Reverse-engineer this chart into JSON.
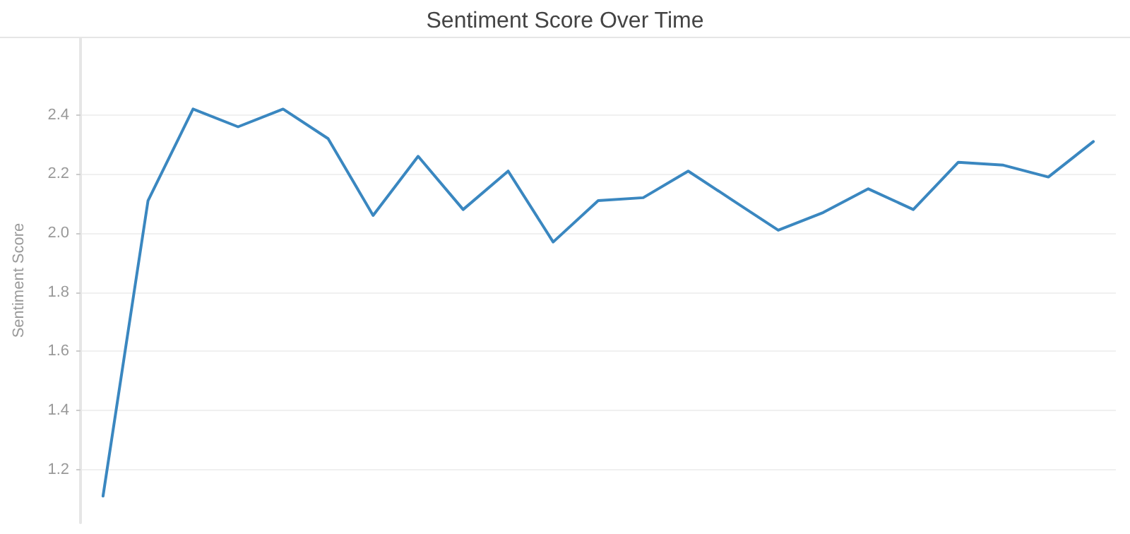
{
  "chart_data": {
    "type": "line",
    "title": "Sentiment Score Over Time",
    "ylabel": "Sentiment Score",
    "categories": [
      null,
      null,
      null,
      null,
      null,
      null,
      null,
      null,
      null,
      null,
      null,
      null,
      null,
      null,
      null,
      null,
      null,
      null,
      null,
      null,
      null,
      null,
      null
    ],
    "series": [
      {
        "color": "#3a87c0",
        "values": [
          1.11,
          2.11,
          2.42,
          2.36,
          2.42,
          2.32,
          2.06,
          2.26,
          2.08,
          2.21,
          1.97,
          2.11,
          2.12,
          2.21,
          2.11,
          2.01,
          2.07,
          2.15,
          2.08,
          2.24,
          2.23,
          2.19,
          2.31
        ]
      }
    ],
    "ylim": [
      1.02,
      2.66
    ],
    "yticks": [
      1.2,
      1.4,
      1.6,
      1.8,
      {
        "value": 2,
        "label": "2.0"
      },
      2.2,
      2.4
    ],
    "grid": "y",
    "marker": "none",
    "line_style": "solid"
  }
}
